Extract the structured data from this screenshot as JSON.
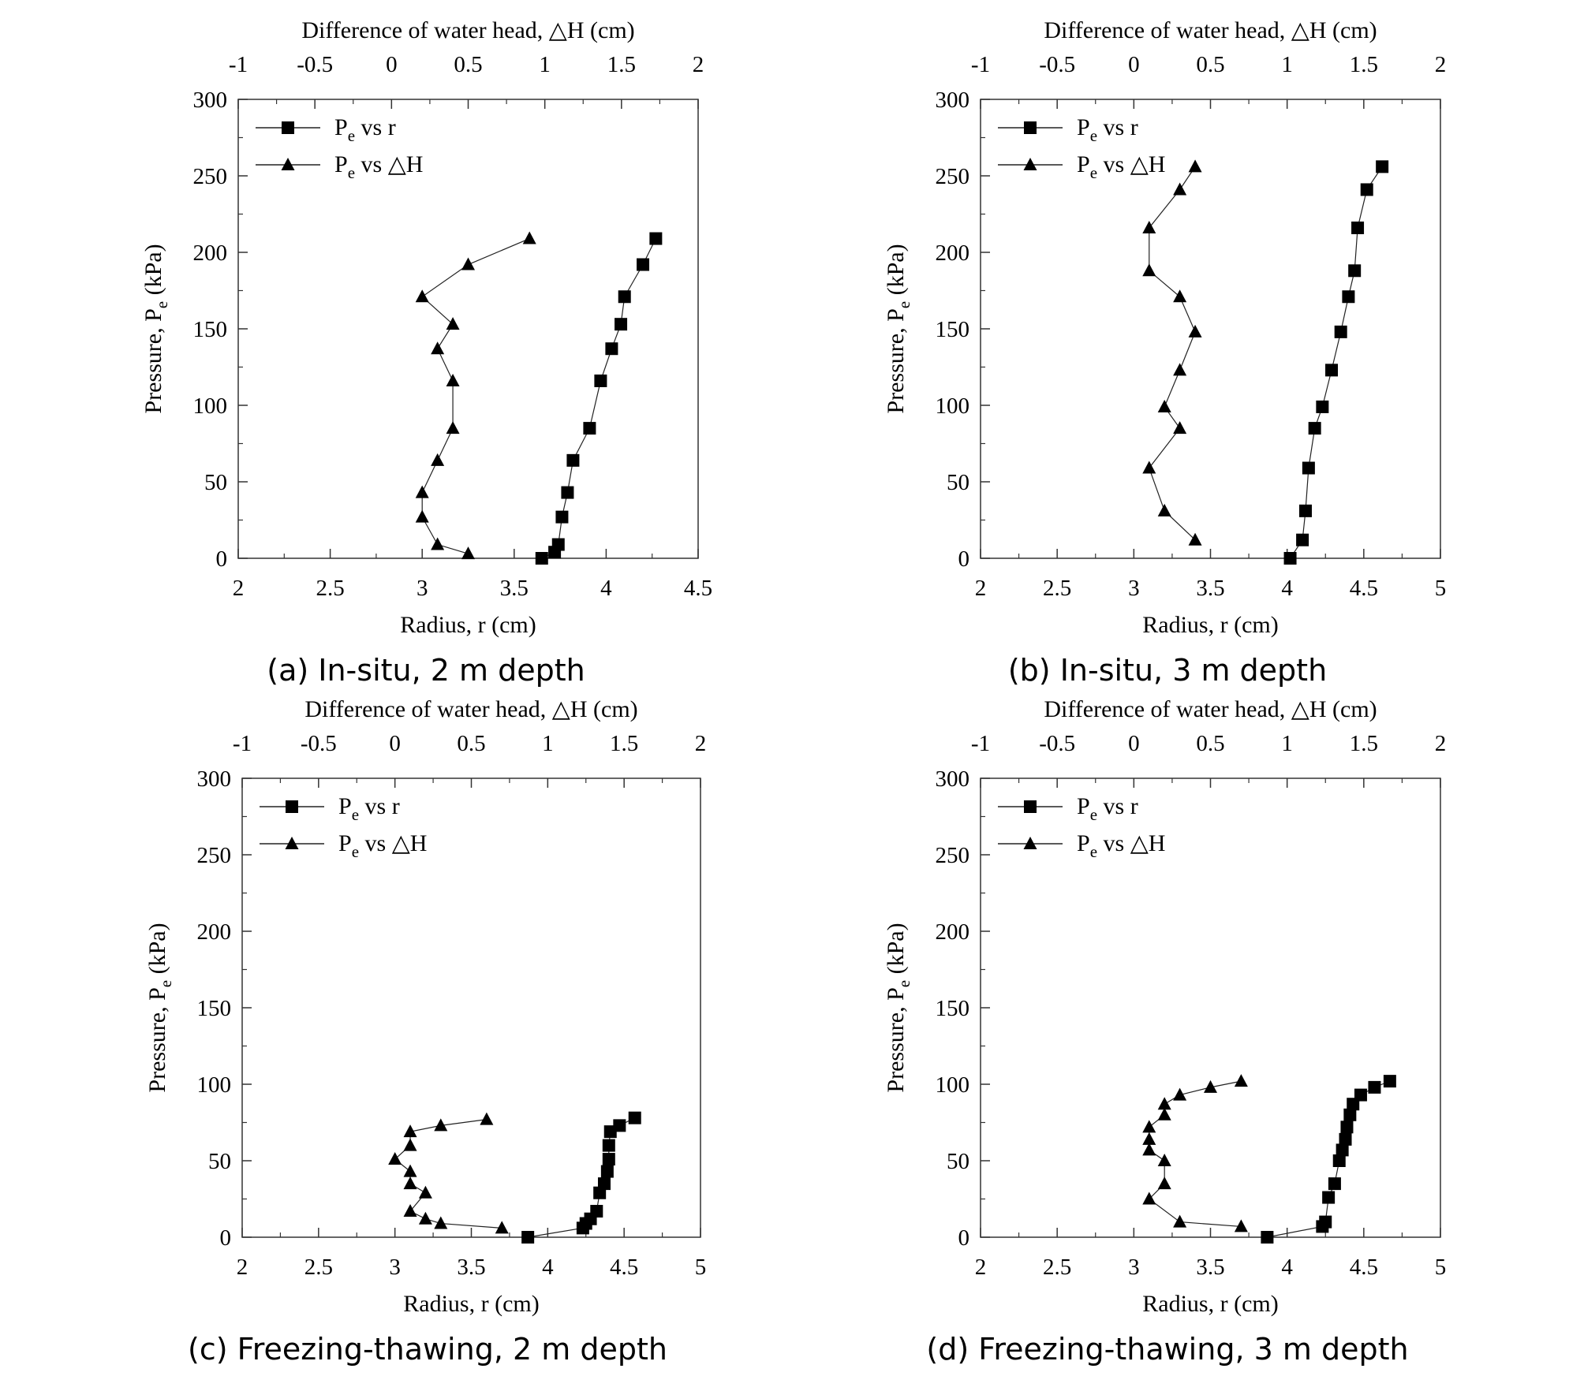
{
  "panels": [
    {
      "caption": "(a) In-situ, 2 m depth",
      "chart_data": {
        "type": "scatter",
        "top_axis": {
          "label": "Difference of water head, △H (cm)",
          "range": [
            -1,
            2
          ],
          "ticks": [
            -1,
            -0.5,
            0,
            0.5,
            1,
            1.5,
            2
          ],
          "tick_labels": [
            "-1",
            "-0.5",
            "0",
            "0.5",
            "1",
            "1.5",
            "2"
          ]
        },
        "bottom_axis": {
          "label": "Radius, r (cm)",
          "range": [
            2,
            4.5
          ],
          "ticks": [
            2,
            2.5,
            3,
            3.5,
            4,
            4.5
          ],
          "tick_labels": [
            "2",
            "2.5",
            "3",
            "3.5",
            "4",
            "4.5"
          ]
        },
        "y_axis": {
          "label": "Pressure, P",
          "label_sub": "e",
          "label_unit": " (kPa)",
          "range": [
            0,
            300
          ],
          "ticks": [
            0,
            50,
            100,
            150,
            200,
            250,
            300
          ],
          "tick_labels": [
            "0",
            "50",
            "100",
            "150",
            "200",
            "250",
            "300"
          ]
        },
        "legend": {
          "placement": "top-left"
        },
        "series": [
          {
            "name": "Pe vs r",
            "legend_main": "P",
            "legend_sub": "e",
            "legend_rest": " vs r",
            "marker": "square",
            "x_axis": "bottom",
            "x": [
              3.65,
              3.72,
              3.74,
              3.76,
              3.79,
              3.82,
              3.91,
              3.97,
              4.03,
              4.08,
              4.1,
              4.2,
              4.27
            ],
            "y": [
              0,
              4,
              9,
              27,
              43,
              64,
              85,
              116,
              137,
              153,
              171,
              192,
              209
            ]
          },
          {
            "name": "Pe vs △H",
            "legend_main": "P",
            "legend_sub": "e",
            "legend_rest": " vs △H",
            "marker": "triangle",
            "x_axis": "top",
            "x": [
              0.5,
              0.3,
              0.2,
              0.2,
              0.3,
              0.4,
              0.4,
              0.3,
              0.4,
              0.2,
              0.5,
              0.9
            ],
            "y": [
              3,
              9,
              27,
              43,
              64,
              85,
              116,
              137,
              153,
              171,
              192,
              209
            ]
          }
        ]
      }
    },
    {
      "caption": "(b) In-situ, 3 m depth",
      "chart_data": {
        "type": "scatter",
        "top_axis": {
          "label": "Difference of water head, △H (cm)",
          "range": [
            -1,
            2
          ],
          "ticks": [
            -1,
            -0.5,
            0,
            0.5,
            1,
            1.5,
            2
          ],
          "tick_labels": [
            "-1",
            "-0.5",
            "0",
            "0.5",
            "1",
            "1.5",
            "2"
          ]
        },
        "bottom_axis": {
          "label": "Radius, r (cm)",
          "range": [
            2,
            5
          ],
          "ticks": [
            2,
            2.5,
            3,
            3.5,
            4,
            4.5,
            5
          ],
          "tick_labels": [
            "2",
            "2.5",
            "3",
            "3.5",
            "4",
            "4.5",
            "5"
          ]
        },
        "y_axis": {
          "label": "Pressure, P",
          "label_sub": "e",
          "label_unit": " (kPa)",
          "range": [
            0,
            300
          ],
          "ticks": [
            0,
            50,
            100,
            150,
            200,
            250,
            300
          ],
          "tick_labels": [
            "0",
            "50",
            "100",
            "150",
            "200",
            "250",
            "300"
          ]
        },
        "legend": {
          "placement": "top-left"
        },
        "series": [
          {
            "name": "Pe vs r",
            "legend_main": "P",
            "legend_sub": "e",
            "legend_rest": " vs r",
            "marker": "square",
            "x_axis": "bottom",
            "x": [
              4.02,
              4.1,
              4.12,
              4.14,
              4.18,
              4.23,
              4.29,
              4.35,
              4.4,
              4.44,
              4.46,
              4.52,
              4.62
            ],
            "y": [
              0,
              12,
              31,
              59,
              85,
              99,
              123,
              148,
              171,
              188,
              216,
              241,
              256
            ]
          },
          {
            "name": "Pe vs △H",
            "legend_main": "P",
            "legend_sub": "e",
            "legend_rest": " vs △H",
            "marker": "triangle",
            "x_axis": "top",
            "x": [
              0.4,
              0.2,
              0.1,
              0.3,
              0.2,
              0.3,
              0.4,
              0.3,
              0.1,
              0.1,
              0.3,
              0.4
            ],
            "y": [
              12,
              31,
              59,
              85,
              99,
              123,
              148,
              171,
              188,
              216,
              241,
              256
            ]
          }
        ]
      }
    },
    {
      "caption": "(c) Freezing-thawing, 2 m depth",
      "chart_data": {
        "type": "scatter",
        "top_axis": {
          "label": "Difference of water head, △H (cm)",
          "range": [
            -1,
            2
          ],
          "ticks": [
            -1,
            -0.5,
            0,
            0.5,
            1,
            1.5,
            2
          ],
          "tick_labels": [
            "-1",
            "-0.5",
            "0",
            "0.5",
            "1",
            "1.5",
            "2"
          ]
        },
        "bottom_axis": {
          "label": "Radius, r (cm)",
          "range": [
            2,
            5
          ],
          "ticks": [
            2,
            2.5,
            3,
            3.5,
            4,
            4.5,
            5
          ],
          "tick_labels": [
            "2",
            "2.5",
            "3",
            "3.5",
            "4",
            "4.5",
            "5"
          ]
        },
        "y_axis": {
          "label": "Pressure, P",
          "label_sub": "e",
          "label_unit": " (kPa)",
          "range": [
            0,
            300
          ],
          "ticks": [
            0,
            50,
            100,
            150,
            200,
            250,
            300
          ],
          "tick_labels": [
            "0",
            "50",
            "100",
            "150",
            "200",
            "250",
            "300"
          ]
        },
        "legend": {
          "placement": "top-left"
        },
        "series": [
          {
            "name": "Pe vs r",
            "legend_main": "P",
            "legend_sub": "e",
            "legend_rest": " vs r",
            "marker": "square",
            "x_axis": "bottom",
            "x": [
              3.87,
              4.23,
              4.25,
              4.28,
              4.32,
              4.34,
              4.37,
              4.39,
              4.4,
              4.4,
              4.41,
              4.47,
              4.57
            ],
            "y": [
              0,
              6,
              9,
              12,
              17,
              29,
              35,
              43,
              51,
              60,
              69,
              73,
              78
            ]
          },
          {
            "name": "Pe vs △H",
            "legend_main": "P",
            "legend_sub": "e",
            "legend_rest": " vs △H",
            "marker": "triangle",
            "x_axis": "top",
            "x": [
              0.7,
              0.3,
              0.2,
              0.1,
              0.2,
              0.1,
              0.1,
              0.0,
              0.1,
              0.1,
              0.3,
              0.6
            ],
            "y": [
              6,
              9,
              12,
              17,
              29,
              35,
              43,
              51,
              60,
              69,
              73,
              77
            ]
          }
        ]
      }
    },
    {
      "caption": "(d) Freezing-thawing, 3 m depth",
      "chart_data": {
        "type": "scatter",
        "top_axis": {
          "label": "Difference of water head, △H (cm)",
          "range": [
            -1,
            2
          ],
          "ticks": [
            -1,
            -0.5,
            0,
            0.5,
            1,
            1.5,
            2
          ],
          "tick_labels": [
            "-1",
            "-0.5",
            "0",
            "0.5",
            "1",
            "1.5",
            "2"
          ]
        },
        "bottom_axis": {
          "label": "Radius, r (cm)",
          "range": [
            2,
            5
          ],
          "ticks": [
            2,
            2.5,
            3,
            3.5,
            4,
            4.5,
            5
          ],
          "tick_labels": [
            "2",
            "2.5",
            "3",
            "3.5",
            "4",
            "4.5",
            "5"
          ]
        },
        "y_axis": {
          "label": "Pressure, P",
          "label_sub": "e",
          "label_unit": " (kPa)",
          "range": [
            0,
            300
          ],
          "ticks": [
            0,
            50,
            100,
            150,
            200,
            250,
            300
          ],
          "tick_labels": [
            "0",
            "50",
            "100",
            "150",
            "200",
            "250",
            "300"
          ]
        },
        "legend": {
          "placement": "top-left"
        },
        "series": [
          {
            "name": "Pe vs r",
            "legend_main": "P",
            "legend_sub": "e",
            "legend_rest": " vs r",
            "marker": "square",
            "x_axis": "bottom",
            "x": [
              3.87,
              4.23,
              4.25,
              4.27,
              4.31,
              4.34,
              4.36,
              4.38,
              4.39,
              4.41,
              4.43,
              4.48,
              4.57,
              4.67
            ],
            "y": [
              0,
              7,
              10,
              26,
              35,
              50,
              57,
              64,
              72,
              80,
              87,
              93,
              98,
              102
            ]
          },
          {
            "name": "Pe vs △H",
            "legend_main": "P",
            "legend_sub": "e",
            "legend_rest": " vs △H",
            "marker": "triangle",
            "x_axis": "top",
            "x": [
              0.7,
              0.3,
              0.1,
              0.2,
              0.2,
              0.1,
              0.1,
              0.1,
              0.2,
              0.2,
              0.3,
              0.5,
              0.7
            ],
            "y": [
              7,
              10,
              25,
              35,
              50,
              57,
              64,
              72,
              80,
              87,
              93,
              98,
              102
            ]
          }
        ]
      }
    }
  ]
}
